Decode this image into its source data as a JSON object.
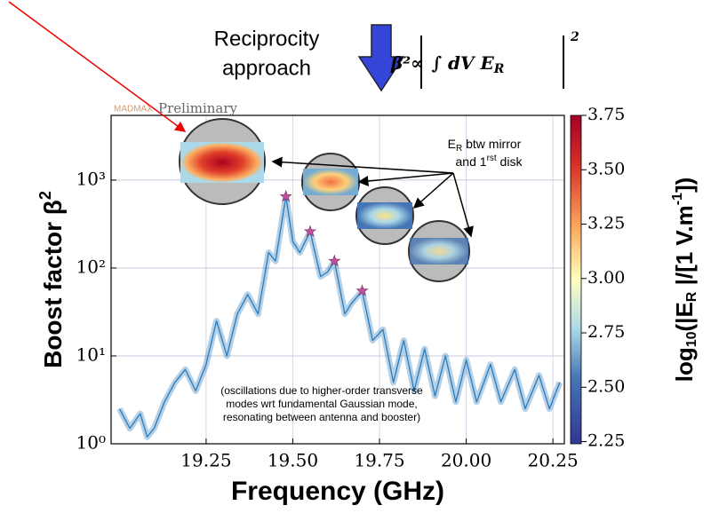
{
  "chart_data": {
    "type": "line",
    "x_label": "Frequency (GHz)",
    "y_label": {
      "text": "Boost factor β",
      "sup": "2"
    },
    "x": [
      19.0,
      19.03,
      19.06,
      19.08,
      19.1,
      19.13,
      19.16,
      19.19,
      19.22,
      19.25,
      19.28,
      19.31,
      19.34,
      19.37,
      19.4,
      19.43,
      19.45,
      19.48,
      19.5,
      19.52,
      19.55,
      19.58,
      19.6,
      19.62,
      19.65,
      19.67,
      19.7,
      19.73,
      19.76,
      19.79,
      19.82,
      19.85,
      19.88,
      19.91,
      19.94,
      19.97,
      20.0,
      20.03,
      20.07,
      20.1,
      20.14,
      20.17,
      20.21,
      20.24,
      20.27
    ],
    "series": [
      {
        "color": "#2b7bba",
        "values": [
          2.5,
          1.5,
          2.2,
          1.2,
          1.5,
          3,
          5,
          7,
          4,
          8,
          25,
          10,
          30,
          50,
          30,
          150,
          120,
          650,
          200,
          150,
          260,
          80,
          90,
          120,
          30,
          40,
          55,
          15,
          20,
          5,
          15,
          4,
          12,
          3.5,
          10,
          3,
          9,
          3,
          8,
          3,
          7,
          2.5,
          6,
          2.5,
          5
        ]
      }
    ],
    "markers": {
      "color": "#c0509a",
      "x": [
        19.48,
        19.55,
        19.62,
        19.7
      ],
      "values": [
        650,
        260,
        120,
        55
      ]
    },
    "xlim": [
      18.976,
      20.283
    ],
    "xticks": [
      {
        "value": 19.25,
        "label": "19.25"
      },
      {
        "value": 19.5,
        "label": "19.50"
      },
      {
        "value": 19.75,
        "label": "19.75"
      },
      {
        "value": 20,
        "label": "20.00"
      },
      {
        "value": 20.25,
        "label": "20.25"
      }
    ],
    "ylim": [
      1,
      5450
    ],
    "log_y": true,
    "yticks": [
      {
        "value": 1,
        "label": "10⁰"
      },
      {
        "value": 10,
        "label": "10¹"
      },
      {
        "value": 100,
        "label": "10²"
      },
      {
        "value": 1000,
        "label": "10³"
      }
    ],
    "grid": true,
    "colorbar": {
      "clim": [
        2.24,
        3.75
      ],
      "ticks": [
        {
          "value": 2.25,
          "label": "2.25"
        },
        {
          "value": 2.5,
          "label": "2.50"
        },
        {
          "value": 2.75,
          "label": "2.75"
        },
        {
          "value": 3,
          "label": "3.00"
        },
        {
          "value": 3.25,
          "label": "3.25"
        },
        {
          "value": 3.5,
          "label": "3.50"
        },
        {
          "value": 3.75,
          "label": "3.75"
        }
      ],
      "label": [
        "log",
        "10",
        "(|E",
        "R",
        " |/[1 V.m",
        "-1",
        "])"
      ]
    },
    "watermark": [
      "MADMAX",
      "Preliminary"
    ],
    "method": [
      "Reciprocity",
      "approach"
    ],
    "formula": [
      "β²∝",
      "∫ dV E",
      "R",
      "2"
    ],
    "inset_note": [
      "E",
      "R",
      " btw mirror",
      "and 1",
      "rst",
      " disk"
    ],
    "note": [
      "(oscillations due to higher-order transverse",
      "modes wrt fundamental Gaussian mode,",
      "resonating between antenna and booster)"
    ]
  }
}
